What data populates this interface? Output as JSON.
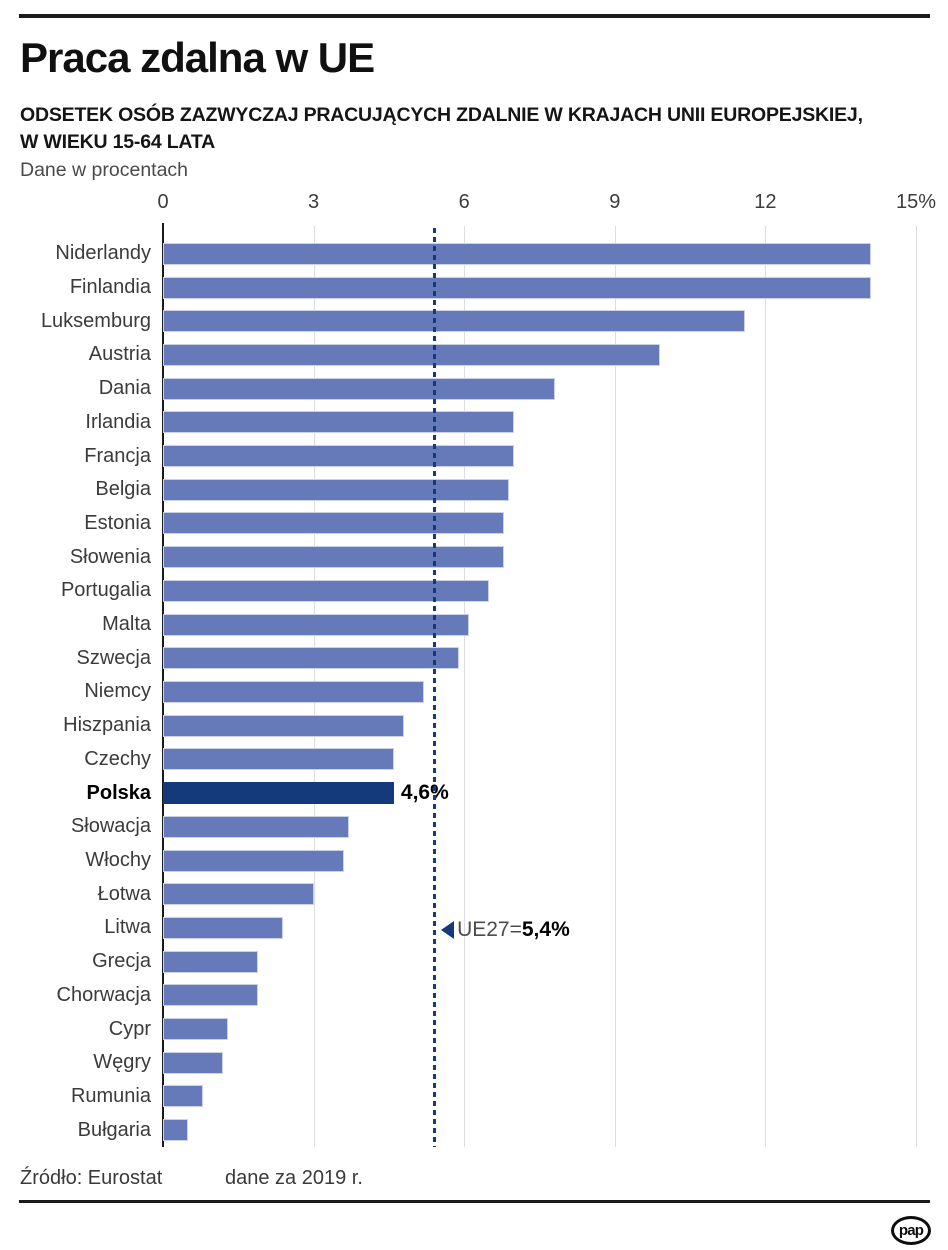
{
  "header": {
    "title": "Praca zdalna w UE",
    "subtitle_line1": "ODSETEK OSÓB ZAZWYCZAJ PRACUJĄCYCH ZDALNIE W KRAJACH UNII EUROPEJSKIEJ,",
    "subtitle_line2": "W WIEKU 15-64 LATA",
    "note": "Dane w procentach"
  },
  "footer": {
    "source": "Źródło: Eurostat",
    "date_note": "dane za 2019 r.",
    "logo": "pap"
  },
  "chart_data": {
    "type": "bar",
    "orientation": "horizontal",
    "title": "Praca zdalna w UE",
    "units": "percent",
    "xlim": [
      0,
      15
    ],
    "x_ticks": [
      "0",
      "3",
      "6",
      "9",
      "12",
      "15%"
    ],
    "x_tick_values": [
      0,
      3,
      6,
      9,
      12,
      15
    ],
    "grid": true,
    "categories": [
      "Niderlandy",
      "Finlandia",
      "Luksemburg",
      "Austria",
      "Dania",
      "Irlandia",
      "Francja",
      "Belgia",
      "Estonia",
      "Słowenia",
      "Portugalia",
      "Malta",
      "Szwecja",
      "Niemcy",
      "Hiszpania",
      "Czechy",
      "Polska",
      "Słowacja",
      "Włochy",
      "Łotwa",
      "Litwa",
      "Grecja",
      "Chorwacja",
      "Cypr",
      "Węgry",
      "Rumunia",
      "Bułgaria"
    ],
    "values": [
      14.1,
      14.1,
      11.6,
      9.9,
      7.8,
      7.0,
      7.0,
      6.9,
      6.8,
      6.8,
      6.5,
      6.1,
      5.9,
      5.2,
      4.8,
      4.6,
      4.6,
      3.7,
      3.6,
      3.0,
      2.4,
      1.9,
      1.9,
      1.3,
      1.2,
      0.8,
      0.5
    ],
    "highlight": {
      "category": "Polska",
      "index": 16,
      "value": 4.6,
      "value_label": "4,6%"
    },
    "reference_line": {
      "value": 5.4,
      "label_prefix": "UE27=",
      "label_value": "5,4%",
      "annotation_row": "Litwa",
      "annotation_row_index": 20
    },
    "colors": {
      "bar": "#6679b8",
      "bar_border": "#ccd2e6",
      "highlight_bar": "#143a7c",
      "reference_line": "#143a7c",
      "gridline": "#d9dce3",
      "zero_axis": "#1a1a1a",
      "label_text": "#3b3b3b"
    }
  }
}
